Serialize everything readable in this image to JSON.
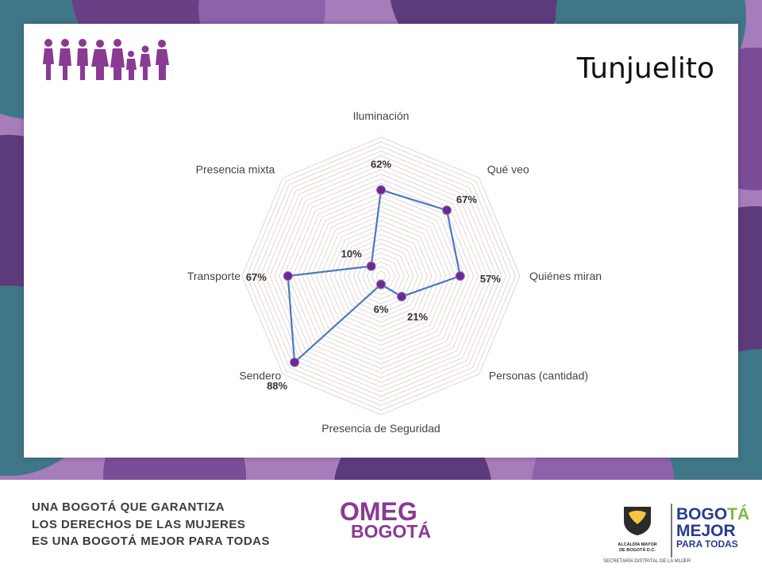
{
  "slide": {
    "title": "Tunjuelito"
  },
  "chart_data": {
    "type": "radar",
    "title": "",
    "axes": [
      "Iluminación",
      "Qué veo",
      "Quiénes miran",
      "Personas (cantidad)",
      "Presencia de Seguridad",
      "Sendero",
      "Transporte",
      "Presencia mixta"
    ],
    "series": [
      {
        "values": [
          62,
          67,
          57,
          21,
          6,
          88,
          67,
          10
        ]
      }
    ],
    "data_labels": [
      "62%",
      "67%",
      "57%",
      "21%",
      "6%",
      "88%",
      "67%",
      "10%"
    ],
    "rlim": [
      0,
      100
    ],
    "grid": true,
    "legend": "none",
    "colors": {
      "line": "#4a79c1",
      "marker": "#6a2a8e",
      "grid_a": "#f4c7a5",
      "grid_b": "#c3cfe6"
    }
  },
  "footer": {
    "slogan": [
      "UNA BOGOTÁ QUE GARANTIZA",
      "LOS DERECHOS DE LAS MUJERES",
      "ES UNA BOGOTÁ MEJOR PARA TODAS"
    ],
    "omeg_top": "OMEG",
    "omeg_bottom": "BOGOTÁ",
    "alcaldia": [
      "ALCALDÍA MAYOR",
      "DE BOGOTÁ D.C."
    ],
    "bogota_mejor": {
      "prefix": "BOGO",
      "accent": "TÁ",
      "line2": "MEJOR",
      "line3": "PARA TODAS"
    },
    "secretaria": "SECRETARÍA DISTRITAL DE LA MUJER"
  },
  "colors": {
    "bg_purple": "#9b59b6",
    "bg_teal": "#3b7a8c",
    "brand_purple": "#8a3a93"
  }
}
